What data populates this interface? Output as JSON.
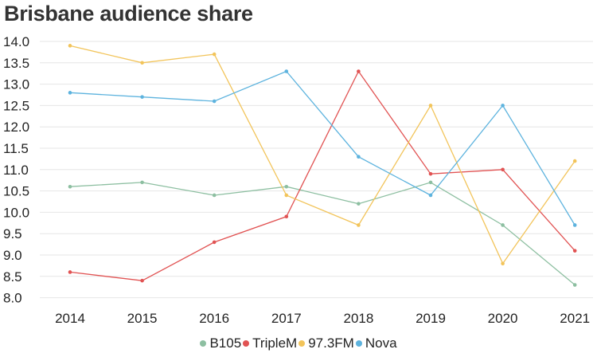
{
  "chart_data": {
    "type": "line",
    "title": "Brisbane audience share",
    "categories": [
      "2014",
      "2015",
      "2016",
      "2017",
      "2018",
      "2019",
      "2020",
      "2021"
    ],
    "y_ticks": [
      "14.0",
      "13.5",
      "13.0",
      "12.5",
      "12.0",
      "11.5",
      "11.0",
      "10.5",
      "10.0",
      "9.5",
      "9.0",
      "8.5",
      "8.0"
    ],
    "ylim": [
      7.9,
      14.0
    ],
    "grid": true,
    "legend_position": "bottom",
    "series": [
      {
        "name": "B105",
        "color": "#8dbfa1",
        "values": [
          10.6,
          10.7,
          10.4,
          10.6,
          10.2,
          10.7,
          9.7,
          8.3
        ]
      },
      {
        "name": "TripleM",
        "color": "#e15353",
        "values": [
          8.6,
          8.4,
          9.3,
          9.9,
          13.3,
          10.9,
          11.0,
          9.1
        ]
      },
      {
        "name": "97.3FM",
        "color": "#f2c45a",
        "values": [
          13.9,
          13.5,
          13.7,
          10.4,
          9.7,
          12.5,
          8.8,
          11.2
        ]
      },
      {
        "name": "Nova",
        "color": "#5db3de",
        "values": [
          12.8,
          12.7,
          12.6,
          13.3,
          11.3,
          10.4,
          12.5,
          9.7
        ]
      }
    ]
  }
}
